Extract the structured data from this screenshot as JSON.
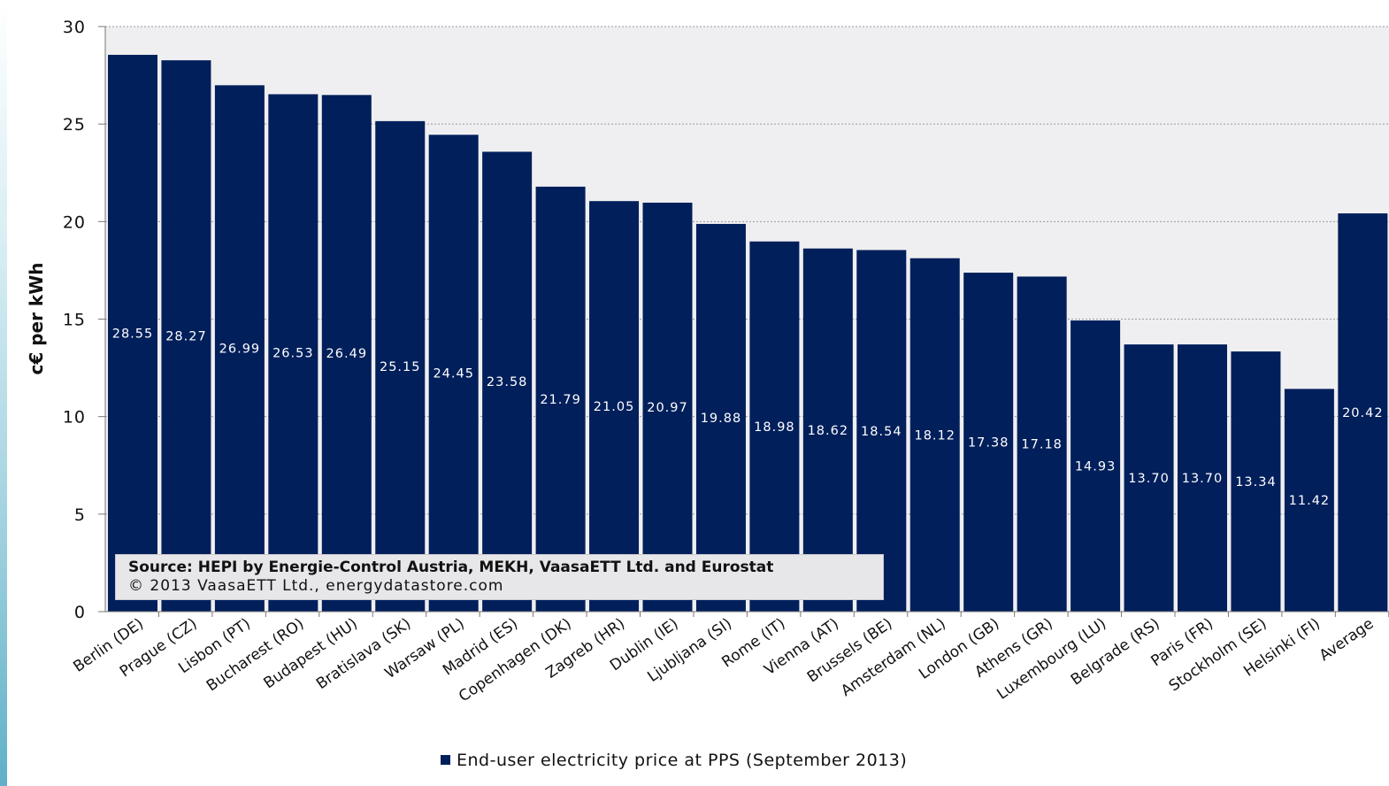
{
  "chart_data": {
    "type": "bar",
    "ylabel": "c€ per kWh",
    "ylim": [
      0,
      30
    ],
    "yticks": [
      "0",
      "5",
      "10",
      "15",
      "20",
      "25",
      "30"
    ],
    "grid": true,
    "bar_color": "#001f5b",
    "categories": [
      "Berlin (DE)",
      "Prague (CZ)",
      "Lisbon (PT)",
      "Bucharest (RO)",
      "Budapest (HU)",
      "Bratislava (SK)",
      "Warsaw (PL)",
      "Madrid (ES)",
      "Copenhagen (DK)",
      "Zagreb (HR)",
      "Dublin (IE)",
      "Ljubljana (SI)",
      "Rome (IT)",
      "Vienna (AT)",
      "Brussels (BE)",
      "Amsterdam (NL)",
      "London (GB)",
      "Athens (GR)",
      "Luxembourg (LU)",
      "Belgrade (RS)",
      "Paris (FR)",
      "Stockholm (SE)",
      "Helsinki (FI)",
      "Average"
    ],
    "values": [
      28.55,
      28.27,
      26.99,
      26.53,
      26.49,
      25.15,
      24.45,
      23.58,
      21.79,
      21.05,
      20.97,
      19.88,
      18.98,
      18.62,
      18.54,
      18.12,
      17.38,
      17.18,
      14.93,
      13.7,
      13.7,
      13.34,
      11.42,
      20.42
    ],
    "value_labels": [
      "28.55",
      "28.27",
      "26.99",
      "26.53",
      "26.49",
      "25.15",
      "24.45",
      "23.58",
      "21.79",
      "21.05",
      "20.97",
      "19.88",
      "18.98",
      "18.62",
      "18.54",
      "18.12",
      "17.38",
      "17.18",
      "14.93",
      "13.70",
      "13.70",
      "13.34",
      "11.42",
      "20.42"
    ],
    "series": [
      {
        "name": "End-user electricity price at PPS (September 2013)"
      }
    ],
    "legend_position": "bottom"
  },
  "source": {
    "line1": "Source: HEPI by Energie-Control Austria, MEKH, VaasaETT Ltd. and Eurostat",
    "line2": "© 2013 VaasaETT Ltd., energydatastore.com"
  },
  "legend": {
    "label": "End-user electricity price at PPS (September 2013)"
  }
}
